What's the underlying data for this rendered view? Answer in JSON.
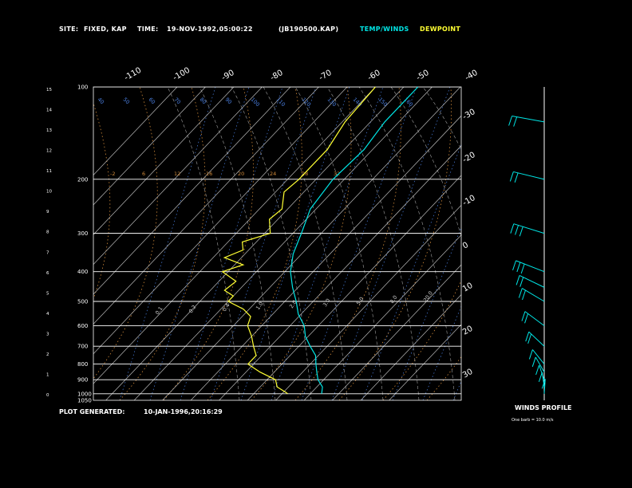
{
  "header": {
    "site_label": "SITE:",
    "site_value": "FIXED, KAP",
    "time_label": "TIME:",
    "time_value": "19-NOV-1992,05:00:22",
    "file_value": "(JB190500.KAP)",
    "temp_winds_label": "TEMP/WINDS",
    "dewpoint_label": "DEWPOINT"
  },
  "footer": {
    "generated_label": "PLOT GENERATED:",
    "generated_value": "10-JAN-1996,20:16:29"
  },
  "winds_panel": {
    "title": "WINDS PROFILE",
    "note": "One barb = 10.0 m/s"
  },
  "colors": {
    "temp": "#00e5e5",
    "dewpoint": "#ffff33",
    "isobar": "#ffffff",
    "isotherm": "#bbbbbb",
    "dry_adiabat": "#d08a3a",
    "moist_adiabat": "#a0a0a0",
    "mixing_ratio": "#4a7fe0",
    "background": "#000000"
  },
  "chart_data": {
    "type": "line",
    "title": "",
    "pressure_ticks": [
      "100",
      "200",
      "300",
      "400",
      "500",
      "600",
      "700",
      "800",
      "900",
      "1000",
      "1050"
    ],
    "height_ticks": [
      "0",
      "1",
      "2",
      "3",
      "4",
      "5",
      "6",
      "7",
      "8",
      "9",
      "10",
      "11",
      "12",
      "13",
      "14",
      "15"
    ],
    "isotherm_labels_top": [
      "-110",
      "-100",
      "-90",
      "-80",
      "-70",
      "-60",
      "-50",
      "-40"
    ],
    "isotherm_labels_right": [
      "-30",
      "-20",
      "-10",
      "0",
      "10",
      "20",
      "30"
    ],
    "theta_labels_top": [
      "40",
      "50",
      "60",
      "70",
      "80",
      "90",
      "100",
      "110",
      "120",
      "130",
      "140",
      "150",
      "160"
    ],
    "dry_adiabat_labels": [
      "-2",
      "6",
      "12",
      "16",
      "20",
      "24",
      "28",
      "32"
    ],
    "mixing_ratio_labels": [
      "0.1",
      "0.2",
      "0.4",
      "1.0",
      "2.0",
      "3.0",
      "5.0",
      "8.0",
      "20.0"
    ],
    "series": [
      {
        "name": "TEMP/WINDS",
        "pressure_hpa": [
          100,
          130,
          160,
          200,
          250,
          300,
          350,
          400,
          450,
          500,
          550,
          600,
          650,
          700,
          750,
          800,
          850,
          900,
          950,
          1000
        ],
        "temp_c": [
          -55,
          -55,
          -53,
          -54,
          -52,
          -47,
          -43,
          -38,
          -32,
          -26,
          -21,
          -15,
          -11,
          -6,
          -1,
          2,
          5,
          8,
          12,
          14
        ]
      },
      {
        "name": "DEWPOINT",
        "pressure_hpa": [
          100,
          130,
          160,
          200,
          220,
          250,
          270,
          300,
          320,
          340,
          360,
          380,
          400,
          430,
          460,
          480,
          500,
          530,
          560,
          600,
          650,
          700,
          750,
          800,
          850,
          900,
          950,
          990,
          1000
        ],
        "temp_c": [
          -70,
          -69,
          -66,
          -66,
          -67,
          -62,
          -63,
          -58,
          -65,
          -62,
          -66,
          -57,
          -62,
          -54,
          -55,
          -50,
          -50,
          -42,
          -37,
          -35,
          -30,
          -26,
          -22,
          -22,
          -15,
          -7,
          -4,
          1,
          2
        ]
      }
    ],
    "winds": {
      "pressure_hpa": [
        130,
        200,
        300,
        400,
        450,
        500,
        600,
        700,
        800,
        850,
        900,
        950,
        1000
      ],
      "speed_ms": [
        20,
        20,
        25,
        25,
        20,
        20,
        20,
        15,
        10,
        10,
        5,
        5,
        5
      ]
    }
  }
}
